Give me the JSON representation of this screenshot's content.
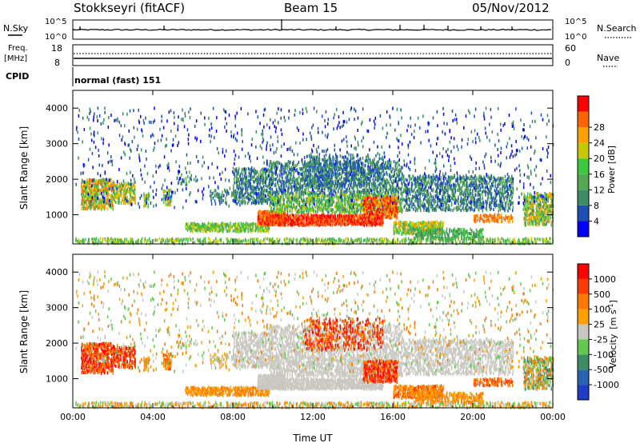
{
  "header": {
    "station": "Stokkseyri (fitACF)",
    "beam": "Beam 15",
    "date": "05/Nov/2012"
  },
  "nsky_panel": {
    "left_label": "N.Sky",
    "ticks_left": [
      "10^5",
      "10^0"
    ],
    "ticks_right": [
      "10^5",
      "10^0"
    ],
    "right_label": "N.Search"
  },
  "freq_panel": {
    "left_label_1": "Freq.",
    "left_label_2": "[MHz]",
    "ticks_left": [
      "18",
      "8"
    ],
    "ticks_right": [
      "60",
      "0"
    ],
    "right_label": "Nave"
  },
  "cpid": {
    "label": "CPID",
    "value": "normal (fast) 151"
  },
  "colors": {
    "power": [
      "#0000ff",
      "#1e50b4",
      "#3c8c64",
      "#54a850",
      "#3cc83c",
      "#c8c800",
      "#ffa000",
      "#ff6400",
      "#ff0000"
    ],
    "velocity": [
      "#1e3cc8",
      "#2864b4",
      "#3c8c64",
      "#64c850",
      "#c8c8c0",
      "#ffa000",
      "#ff7800",
      "#ff3c00",
      "#ff0000"
    ]
  },
  "chart_data": [
    {
      "type": "heatmap",
      "name": "power",
      "xlabel": "",
      "ylabel": "Slant Range [km]",
      "x_ticks": [
        "00:00",
        "04:00",
        "08:00",
        "12:00",
        "16:00",
        "20:00",
        "00:00"
      ],
      "x_range_hours": [
        0,
        24
      ],
      "y_ticks": [
        "1000",
        "2000",
        "3000",
        "4000"
      ],
      "ylim": [
        180,
        4500
      ],
      "colorbar": {
        "label": "Power [dB]",
        "ticks": [
          "4",
          "8",
          "12",
          "16",
          "20",
          "24",
          "28"
        ],
        "range": [
          0,
          32
        ]
      }
    },
    {
      "type": "heatmap",
      "name": "velocity",
      "xlabel": "Time UT",
      "ylabel": "Slant Range [km]",
      "x_ticks": [
        "00:00",
        "04:00",
        "08:00",
        "12:00",
        "16:00",
        "20:00",
        "00:00"
      ],
      "x_range_hours": [
        0,
        24
      ],
      "y_ticks": [
        "1000",
        "2000",
        "3000",
        "4000"
      ],
      "ylim": [
        180,
        4500
      ],
      "colorbar": {
        "label_main": "Velocity",
        "label_unit": "[m s",
        "label_exp": "-1",
        "label_close": "]",
        "ticks": [
          "1000",
          "500",
          "100",
          "25",
          "-25",
          "-100",
          "-500",
          "-1000"
        ]
      }
    }
  ]
}
